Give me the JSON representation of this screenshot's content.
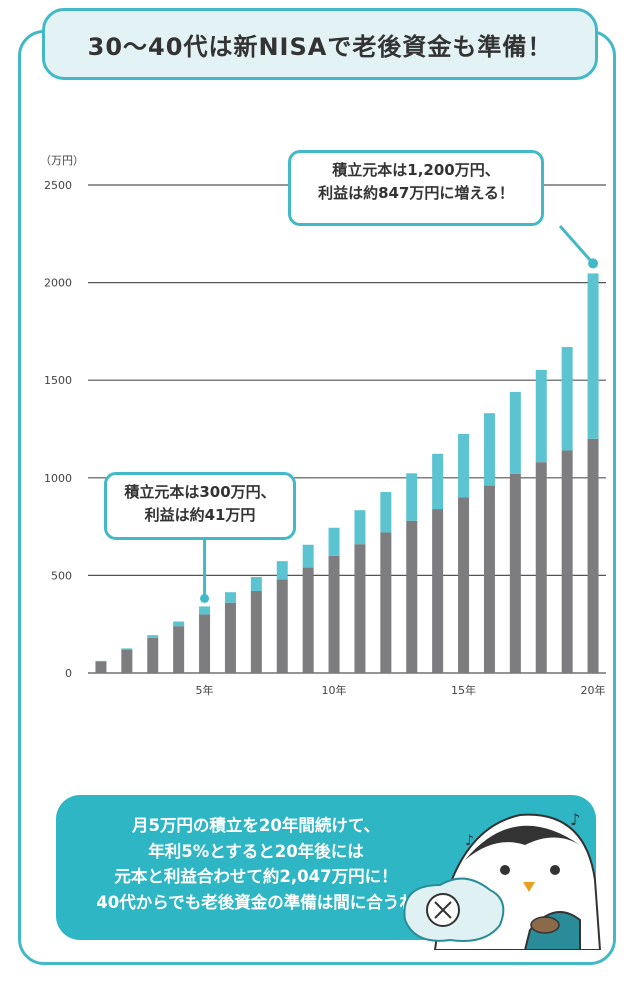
{
  "title": "30～40代は新NISAで老後資金も準備！",
  "colors": {
    "principal": "#7d7d80",
    "profit": "#5cc3d0",
    "accent": "#43b8c6",
    "title_bg": "#e3f2f5"
  },
  "callouts": {
    "year20": {
      "line1": "積立元本は1,200万円、",
      "line2": "利益は約847万円に増える！"
    },
    "year5": {
      "line1": "積立元本は300万円、",
      "line2": "利益は約41万円"
    }
  },
  "summary": {
    "lines": [
      "月5万円の積立を20年間続けて、",
      "年利5%とすると20年後には",
      "元本と利益合わせて約2,047万円に！",
      "40代からでも老後資金の準備は間に合うね"
    ]
  },
  "chart_data": {
    "type": "bar",
    "stacked": true,
    "unit_label": "（万円）",
    "x": [
      1,
      2,
      3,
      4,
      5,
      6,
      7,
      8,
      9,
      10,
      11,
      12,
      13,
      14,
      15,
      16,
      17,
      18,
      19,
      20
    ],
    "x_tick_labels": [
      {
        "x": 5,
        "label": "5年"
      },
      {
        "x": 10,
        "label": "10年"
      },
      {
        "x": 15,
        "label": "15年"
      },
      {
        "x": 20,
        "label": "20年"
      }
    ],
    "y_ticks": [
      0,
      500,
      1000,
      1500,
      2000,
      2500
    ],
    "ylim": [
      0,
      2500
    ],
    "series": [
      {
        "values": [
          60,
          120,
          180,
          240,
          300,
          360,
          420,
          480,
          540,
          600,
          660,
          720,
          780,
          840,
          900,
          960,
          1020,
          1080,
          1140,
          1200
        ]
      },
      {
        "values": [
          2,
          6,
          14,
          24,
          41,
          54,
          72,
          93,
          117,
          144,
          174,
          207,
          243,
          283,
          325,
          371,
          420,
          473,
          530,
          847
        ]
      }
    ]
  }
}
